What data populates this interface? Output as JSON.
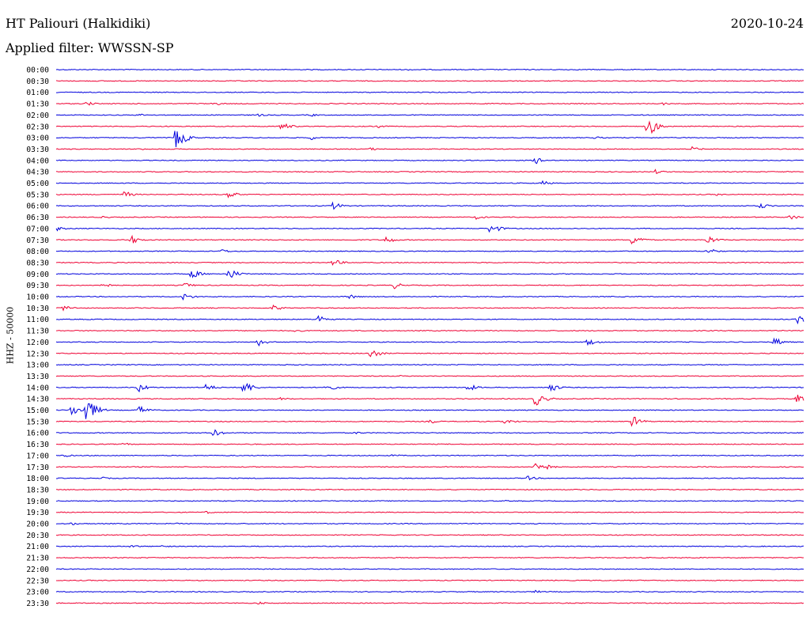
{
  "header": {
    "station": "HT Paliouri (Halkidiki)",
    "date": "2020-10-24",
    "filter": "Applied filter: WWSSN-SP"
  },
  "chart_data": {
    "type": "line",
    "ylabel": "HHZ - 50000",
    "colors": [
      "#0000dd",
      "#ee0033"
    ],
    "rows": [
      {
        "label": "00:00",
        "events": [
          {
            "x": 0.47,
            "amp": 1
          }
        ]
      },
      {
        "label": "00:30",
        "events": [
          {
            "x": 0.36,
            "amp": 1
          }
        ]
      },
      {
        "label": "01:00",
        "events": [
          {
            "x": 0.55,
            "amp": 1
          }
        ]
      },
      {
        "label": "01:30",
        "events": [
          {
            "x": 0.04,
            "amp": 3
          },
          {
            "x": 0.21,
            "amp": 3
          },
          {
            "x": 0.81,
            "amp": 2
          }
        ]
      },
      {
        "label": "02:00",
        "events": [
          {
            "x": 0.11,
            "amp": 2
          },
          {
            "x": 0.27,
            "amp": 2
          },
          {
            "x": 0.34,
            "amp": 2
          }
        ]
      },
      {
        "label": "02:30",
        "events": [
          {
            "x": 0.3,
            "amp": 6
          },
          {
            "x": 0.43,
            "amp": 2
          },
          {
            "x": 0.79,
            "amp": 15
          }
        ]
      },
      {
        "label": "03:00",
        "events": [
          {
            "x": 0.16,
            "amp": 16
          },
          {
            "x": 0.34,
            "amp": 3
          },
          {
            "x": 0.72,
            "amp": 2
          }
        ]
      },
      {
        "label": "03:30",
        "events": [
          {
            "x": 0.11,
            "amp": 2
          },
          {
            "x": 0.42,
            "amp": 2
          },
          {
            "x": 0.85,
            "amp": 3
          }
        ]
      },
      {
        "label": "04:00",
        "events": [
          {
            "x": 0.64,
            "amp": 5
          }
        ]
      },
      {
        "label": "04:30",
        "events": [
          {
            "x": 0.8,
            "amp": 3
          }
        ]
      },
      {
        "label": "05:00",
        "events": [
          {
            "x": 0.65,
            "amp": 3
          }
        ]
      },
      {
        "label": "05:30",
        "events": [
          {
            "x": 0.09,
            "amp": 5
          },
          {
            "x": 0.23,
            "amp": 5
          },
          {
            "x": 0.88,
            "amp": 2
          }
        ]
      },
      {
        "label": "06:00",
        "events": [
          {
            "x": 0.37,
            "amp": 5
          },
          {
            "x": 0.94,
            "amp": 4
          }
        ]
      },
      {
        "label": "06:30",
        "events": [
          {
            "x": 0.06,
            "amp": 2
          },
          {
            "x": 0.56,
            "amp": 3
          },
          {
            "x": 0.98,
            "amp": 4
          }
        ]
      },
      {
        "label": "07:00",
        "events": [
          {
            "x": 0.0,
            "amp": 3
          },
          {
            "x": 0.58,
            "amp": 8
          }
        ]
      },
      {
        "label": "07:30",
        "events": [
          {
            "x": 0.1,
            "amp": 6
          },
          {
            "x": 0.44,
            "amp": 5
          },
          {
            "x": 0.77,
            "amp": 8
          },
          {
            "x": 0.87,
            "amp": 6
          }
        ]
      },
      {
        "label": "08:00",
        "events": [
          {
            "x": 0.22,
            "amp": 3
          },
          {
            "x": 0.87,
            "amp": 5
          }
        ]
      },
      {
        "label": "08:30",
        "events": [
          {
            "x": 0.37,
            "amp": 5
          }
        ]
      },
      {
        "label": "09:00",
        "events": [
          {
            "x": 0.18,
            "amp": 7
          },
          {
            "x": 0.23,
            "amp": 8
          }
        ]
      },
      {
        "label": "09:30",
        "events": [
          {
            "x": 0.06,
            "amp": 4
          },
          {
            "x": 0.17,
            "amp": 4
          },
          {
            "x": 0.45,
            "amp": 5
          }
        ]
      },
      {
        "label": "10:00",
        "events": [
          {
            "x": 0.17,
            "amp": 5
          },
          {
            "x": 0.39,
            "amp": 4
          }
        ]
      },
      {
        "label": "10:30",
        "events": [
          {
            "x": 0.01,
            "amp": 4
          },
          {
            "x": 0.29,
            "amp": 4
          }
        ]
      },
      {
        "label": "11:00",
        "events": [
          {
            "x": 0.35,
            "amp": 6
          },
          {
            "x": 0.99,
            "amp": 7
          }
        ]
      },
      {
        "label": "11:30",
        "events": [
          {
            "x": 0.32,
            "amp": 2
          }
        ]
      },
      {
        "label": "12:00",
        "events": [
          {
            "x": 0.27,
            "amp": 5
          },
          {
            "x": 0.71,
            "amp": 5
          },
          {
            "x": 0.96,
            "amp": 6
          }
        ]
      },
      {
        "label": "12:30",
        "events": [
          {
            "x": 0.42,
            "amp": 7
          }
        ]
      },
      {
        "label": "13:00",
        "events": [
          {
            "x": 0.38,
            "amp": 1
          }
        ]
      },
      {
        "label": "13:30",
        "events": [
          {
            "x": 0.46,
            "amp": 1
          }
        ]
      },
      {
        "label": "14:00",
        "events": [
          {
            "x": 0.11,
            "amp": 6
          },
          {
            "x": 0.2,
            "amp": 5
          },
          {
            "x": 0.25,
            "amp": 10
          },
          {
            "x": 0.36,
            "amp": 6
          },
          {
            "x": 0.55,
            "amp": 5
          },
          {
            "x": 0.66,
            "amp": 6
          }
        ]
      },
      {
        "label": "14:30",
        "events": [
          {
            "x": 0.3,
            "amp": 2
          },
          {
            "x": 0.64,
            "amp": 10
          },
          {
            "x": 0.99,
            "amp": 6
          }
        ]
      },
      {
        "label": "15:00",
        "events": [
          {
            "x": 0.02,
            "amp": 8
          },
          {
            "x": 0.04,
            "amp": 18
          },
          {
            "x": 0.11,
            "amp": 6
          }
        ]
      },
      {
        "label": "15:30",
        "events": [
          {
            "x": 0.5,
            "amp": 3
          },
          {
            "x": 0.6,
            "amp": 4
          },
          {
            "x": 0.77,
            "amp": 8
          }
        ]
      },
      {
        "label": "16:00",
        "events": [
          {
            "x": 0.21,
            "amp": 5
          },
          {
            "x": 0.4,
            "amp": 2
          }
        ]
      },
      {
        "label": "16:30",
        "events": [
          {
            "x": 0.09,
            "amp": 2
          },
          {
            "x": 0.26,
            "amp": 1
          }
        ]
      },
      {
        "label": "17:00",
        "events": [
          {
            "x": 0.01,
            "amp": 2
          },
          {
            "x": 0.45,
            "amp": 2
          }
        ]
      },
      {
        "label": "17:30",
        "events": [
          {
            "x": 0.64,
            "amp": 14
          }
        ]
      },
      {
        "label": "18:00",
        "events": [
          {
            "x": 0.06,
            "amp": 2
          },
          {
            "x": 0.63,
            "amp": 3
          }
        ]
      },
      {
        "label": "18:30",
        "events": [
          {
            "x": 0.6,
            "amp": 1
          }
        ]
      },
      {
        "label": "19:00",
        "events": [
          {
            "x": 0.6,
            "amp": 1
          }
        ]
      },
      {
        "label": "19:30",
        "events": [
          {
            "x": 0.2,
            "amp": 2
          }
        ]
      },
      {
        "label": "20:00",
        "events": [
          {
            "x": 0.02,
            "amp": 2
          },
          {
            "x": 0.16,
            "amp": 1
          }
        ]
      },
      {
        "label": "20:30",
        "events": []
      },
      {
        "label": "21:00",
        "events": [
          {
            "x": 0.1,
            "amp": 2
          },
          {
            "x": 0.14,
            "amp": 2
          },
          {
            "x": 0.55,
            "amp": 1
          }
        ]
      },
      {
        "label": "21:30",
        "events": [
          {
            "x": 0.86,
            "amp": 1
          }
        ]
      },
      {
        "label": "22:00",
        "events": []
      },
      {
        "label": "22:30",
        "events": [
          {
            "x": 0.73,
            "amp": 1
          }
        ]
      },
      {
        "label": "23:00",
        "events": [
          {
            "x": 0.64,
            "amp": 2
          }
        ]
      },
      {
        "label": "23:30",
        "events": [
          {
            "x": 0.27,
            "amp": 2
          }
        ]
      }
    ]
  }
}
